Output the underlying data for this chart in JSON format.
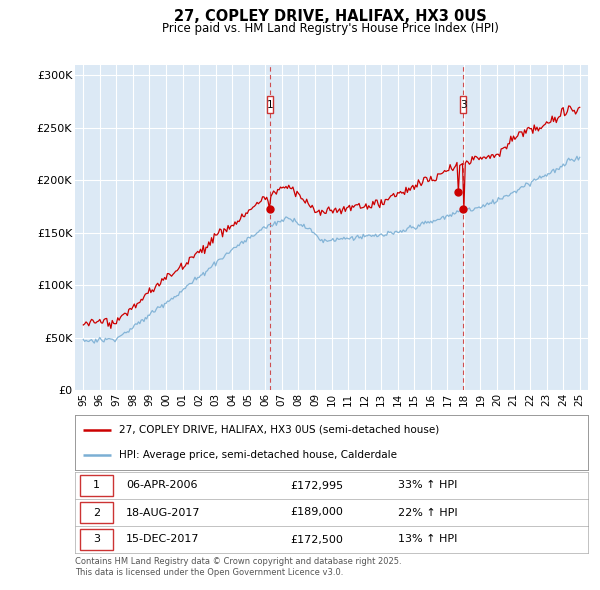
{
  "title": "27, COPLEY DRIVE, HALIFAX, HX3 0US",
  "subtitle": "Price paid vs. HM Land Registry's House Price Index (HPI)",
  "legend_line1": "27, COPLEY DRIVE, HALIFAX, HX3 0US (semi-detached house)",
  "legend_line2": "HPI: Average price, semi-detached house, Calderdale",
  "footer1": "Contains HM Land Registry data © Crown copyright and database right 2025.",
  "footer2": "This data is licensed under the Open Government Licence v3.0.",
  "transactions": [
    {
      "num": 1,
      "date": "06-APR-2006",
      "price": "£172,995",
      "change": "33% ↑ HPI",
      "x_year": 2006.27,
      "y": 172995,
      "show_vline": true
    },
    {
      "num": 2,
      "date": "18-AUG-2017",
      "price": "£189,000",
      "change": "22% ↑ HPI",
      "x_year": 2017.63,
      "y": 189000,
      "show_vline": false
    },
    {
      "num": 3,
      "date": "15-DEC-2017",
      "price": "£172,500",
      "change": "13% ↑ HPI",
      "x_year": 2017.96,
      "y": 172500,
      "show_vline": true
    }
  ],
  "ylim": [
    0,
    310000
  ],
  "yticks": [
    0,
    50000,
    100000,
    150000,
    200000,
    250000,
    300000
  ],
  "ytick_labels": [
    "£0",
    "£50K",
    "£100K",
    "£150K",
    "£200K",
    "£250K",
    "£300K"
  ],
  "xlim_start": 1994.5,
  "xlim_end": 2025.5,
  "bg_color": "#dce9f5",
  "fig_bg": "#ffffff",
  "red_color": "#cc0000",
  "blue_color": "#7bafd4",
  "grid_color": "#ffffff",
  "vline_color": "#cc3333"
}
